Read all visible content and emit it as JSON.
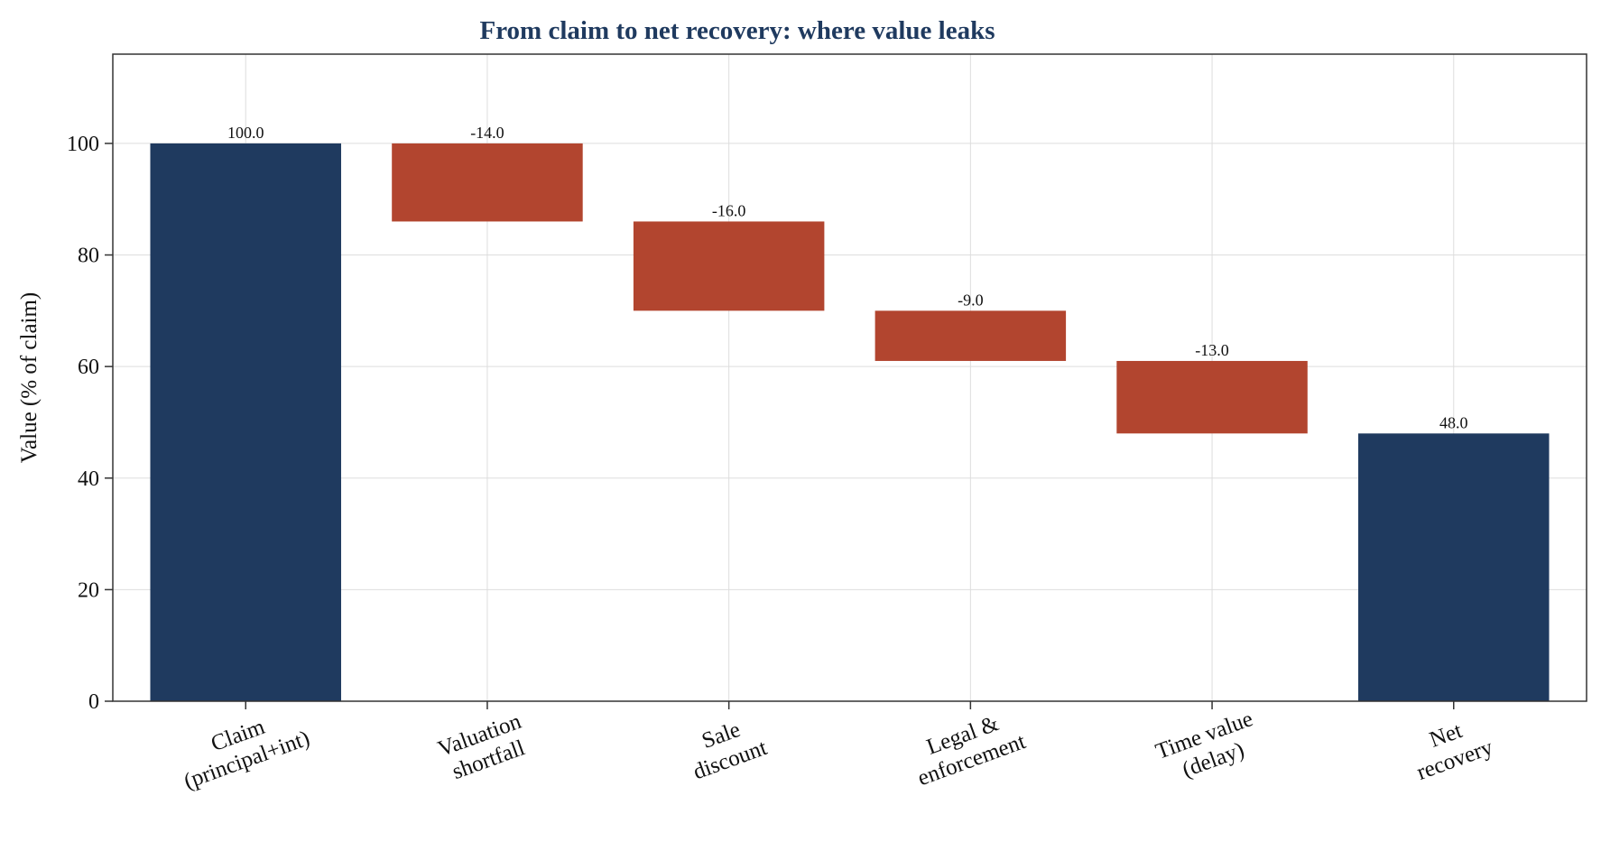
{
  "chart_data": {
    "type": "bar",
    "subtype": "waterfall",
    "title": "From claim to net recovery: where value leaks",
    "xlabel": "",
    "ylabel": "Value (% of claim)",
    "ylim": [
      0,
      116
    ],
    "yticks": [
      0,
      20,
      40,
      60,
      80,
      100
    ],
    "grid": true,
    "categories": [
      [
        "Claim",
        "(principal+int)"
      ],
      [
        "Valuation",
        "shortfall"
      ],
      [
        "Sale",
        "discount"
      ],
      [
        "Legal &",
        "enforcement"
      ],
      [
        "Time value",
        "(delay)"
      ],
      [
        "Net",
        "recovery"
      ]
    ],
    "values": [
      100.0,
      -14.0,
      -16.0,
      -9.0,
      -13.0,
      48.0
    ],
    "bar_kinds": [
      "total",
      "delta",
      "delta",
      "delta",
      "delta",
      "total"
    ],
    "data_labels": [
      "100.0",
      "-14.0",
      "-16.0",
      "-9.0",
      "-13.0",
      "48.0"
    ],
    "colors": {
      "total": "#1f3a5f",
      "delta": "#b2452f",
      "title": "#1f3a5f",
      "grid": "#dddddd",
      "axis": "#333333"
    }
  }
}
